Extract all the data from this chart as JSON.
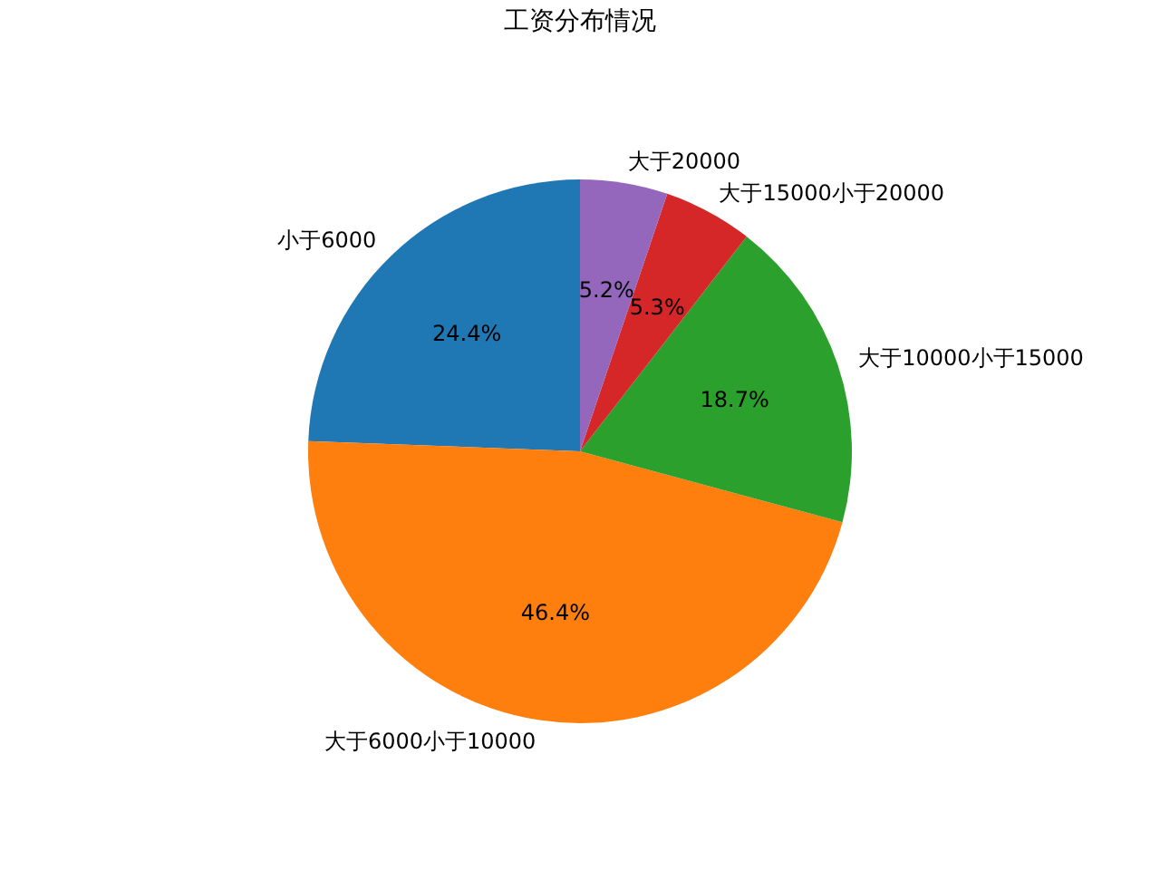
{
  "chart_data": {
    "type": "pie",
    "title": "工资分布情况",
    "categories": [
      "小于6000",
      "大于6000小于10000",
      "大于10000小于15000",
      "大于15000小于20000",
      "大于20000"
    ],
    "values": [
      24.4,
      46.4,
      18.7,
      5.3,
      5.2
    ],
    "colors": [
      "#1f77b4",
      "#ff7f0e",
      "#2ca02c",
      "#d62728",
      "#9467bd"
    ],
    "value_labels": [
      "24.4%",
      "46.4%",
      "18.7%",
      "5.3%",
      "5.2%"
    ],
    "legend": false
  }
}
